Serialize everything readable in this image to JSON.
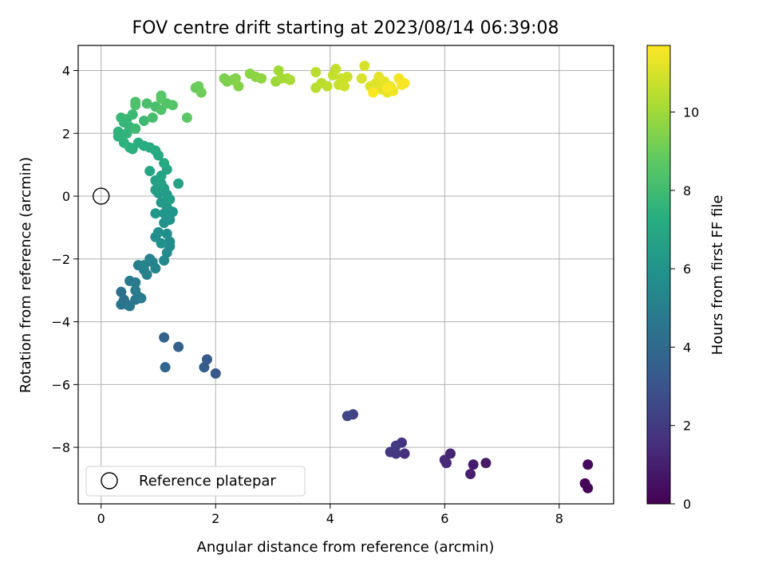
{
  "chart_data": {
    "type": "scatter",
    "title": "FOV centre drift starting at 2023/08/14 06:39:08",
    "xlabel": "Angular distance from reference (arcmin)",
    "ylabel": "Rotation from reference (arcmin)",
    "xlim": [
      -0.4,
      8.95
    ],
    "ylim": [
      -9.8,
      4.8
    ],
    "xticks": [
      0,
      2,
      4,
      6,
      8
    ],
    "yticks": [
      -8,
      -6,
      -4,
      -2,
      0,
      2,
      4
    ],
    "grid": true,
    "legend": {
      "position": "lower-left",
      "entries": [
        "Reference platepar"
      ]
    },
    "reference_point": {
      "x": 0,
      "y": 0
    },
    "colorbar": {
      "label": "Hours from first FF file",
      "min": 0,
      "max": 11.7,
      "ticks": [
        0,
        2,
        4,
        6,
        8,
        10
      ],
      "colormap": "viridis"
    },
    "points": [
      [
        8.5,
        -9.3,
        0.1
      ],
      [
        8.45,
        -9.15,
        0.2
      ],
      [
        8.5,
        -8.55,
        0.3
      ],
      [
        6.72,
        -8.5,
        0.8
      ],
      [
        6.5,
        -8.55,
        0.9
      ],
      [
        6.45,
        -8.85,
        1.0
      ],
      [
        6.1,
        -8.2,
        1.2
      ],
      [
        6.03,
        -8.5,
        1.3
      ],
      [
        6.0,
        -8.4,
        1.4
      ],
      [
        5.3,
        -8.2,
        1.6
      ],
      [
        5.25,
        -7.85,
        1.7
      ],
      [
        5.15,
        -8.2,
        1.8
      ],
      [
        5.05,
        -8.15,
        1.9
      ],
      [
        5.15,
        -7.95,
        2.0
      ],
      [
        4.4,
        -6.95,
        2.3
      ],
      [
        4.3,
        -7.0,
        2.4
      ],
      [
        2.0,
        -5.65,
        3.2
      ],
      [
        1.85,
        -5.2,
        3.3
      ],
      [
        1.8,
        -5.45,
        3.4
      ],
      [
        1.35,
        -4.8,
        3.6
      ],
      [
        1.1,
        -4.5,
        3.7
      ],
      [
        1.12,
        -5.45,
        3.8
      ],
      [
        0.35,
        -3.05,
        4.3
      ],
      [
        0.4,
        -3.3,
        4.4
      ],
      [
        0.45,
        -3.45,
        4.45
      ],
      [
        0.35,
        -3.45,
        4.5
      ],
      [
        0.6,
        -3.3,
        4.55
      ],
      [
        0.65,
        -3.2,
        4.6
      ],
      [
        0.5,
        -3.5,
        4.65
      ],
      [
        0.5,
        -2.7,
        4.7
      ],
      [
        0.6,
        -2.75,
        4.75
      ],
      [
        0.7,
        -3.25,
        4.8
      ],
      [
        0.6,
        -3.0,
        4.85
      ],
      [
        0.65,
        -2.2,
        5.0
      ],
      [
        0.75,
        -2.35,
        5.05
      ],
      [
        0.8,
        -2.5,
        5.1
      ],
      [
        0.9,
        -2.1,
        5.15
      ],
      [
        0.85,
        -2.0,
        5.2
      ],
      [
        0.75,
        -2.2,
        5.25
      ],
      [
        0.95,
        -2.3,
        5.3
      ],
      [
        1.1,
        -2.05,
        5.5
      ],
      [
        1.15,
        -1.8,
        5.55
      ],
      [
        1.2,
        -1.6,
        5.6
      ],
      [
        1.2,
        -1.45,
        5.65
      ],
      [
        1.15,
        -1.2,
        5.7
      ],
      [
        0.95,
        -1.3,
        5.75
      ],
      [
        1.0,
        -1.15,
        5.8
      ],
      [
        1.05,
        -1.5,
        5.85
      ],
      [
        1.1,
        -0.85,
        5.95
      ],
      [
        1.2,
        -0.75,
        6.0
      ],
      [
        1.25,
        -0.5,
        6.05
      ],
      [
        1.1,
        -0.55,
        6.1
      ],
      [
        0.95,
        -0.55,
        6.15
      ],
      [
        1.15,
        -0.35,
        6.2
      ],
      [
        1.05,
        -0.2,
        6.25
      ],
      [
        1.0,
        0.1,
        6.35
      ],
      [
        1.15,
        0.05,
        6.4
      ],
      [
        1.2,
        -0.1,
        6.45
      ],
      [
        1.1,
        0.25,
        6.5
      ],
      [
        0.95,
        0.2,
        6.55
      ],
      [
        1.05,
        0.4,
        6.6
      ],
      [
        0.95,
        0.5,
        6.65
      ],
      [
        1.35,
        0.4,
        6.7
      ],
      [
        1.05,
        0.65,
        6.75
      ],
      [
        1.15,
        0.85,
        6.8
      ],
      [
        0.85,
        0.8,
        6.85
      ],
      [
        1.1,
        1.05,
        7.05
      ],
      [
        1.0,
        1.3,
        7.1
      ],
      [
        0.95,
        1.45,
        7.15
      ],
      [
        0.85,
        1.55,
        7.2
      ],
      [
        0.75,
        1.6,
        7.25
      ],
      [
        0.65,
        1.7,
        7.3
      ],
      [
        0.55,
        1.5,
        7.35
      ],
      [
        0.5,
        1.55,
        7.4
      ],
      [
        0.4,
        1.7,
        7.45
      ],
      [
        0.3,
        1.9,
        7.5
      ],
      [
        0.3,
        2.05,
        7.55
      ],
      [
        0.45,
        2.0,
        7.6
      ],
      [
        0.5,
        2.2,
        7.65
      ],
      [
        0.4,
        2.35,
        7.7
      ],
      [
        0.45,
        2.45,
        7.75
      ],
      [
        0.35,
        2.5,
        7.8
      ],
      [
        0.55,
        2.6,
        7.85
      ],
      [
        0.75,
        2.4,
        7.9
      ],
      [
        0.6,
        2.15,
        7.95
      ],
      [
        0.9,
        2.5,
        8.15
      ],
      [
        0.95,
        2.85,
        8.2
      ],
      [
        0.8,
        2.95,
        8.25
      ],
      [
        0.6,
        2.9,
        8.3
      ],
      [
        0.6,
        3.0,
        8.35
      ],
      [
        1.05,
        2.75,
        8.4
      ],
      [
        1.15,
        2.95,
        8.45
      ],
      [
        1.25,
        2.9,
        8.5
      ],
      [
        1.05,
        3.1,
        8.55
      ],
      [
        1.05,
        3.2,
        8.6
      ],
      [
        1.5,
        2.5,
        8.7
      ],
      [
        1.65,
        3.45,
        8.95
      ],
      [
        1.7,
        3.5,
        9.0
      ],
      [
        1.75,
        3.3,
        9.05
      ],
      [
        2.15,
        3.75,
        9.3
      ],
      [
        2.2,
        3.65,
        9.35
      ],
      [
        2.3,
        3.7,
        9.4
      ],
      [
        2.35,
        3.75,
        9.45
      ],
      [
        2.4,
        3.5,
        9.5
      ],
      [
        2.6,
        3.9,
        9.6
      ],
      [
        2.7,
        3.8,
        9.65
      ],
      [
        2.8,
        3.75,
        9.7
      ],
      [
        3.05,
        3.65,
        9.95
      ],
      [
        3.1,
        4.0,
        10.0
      ],
      [
        3.15,
        3.75,
        10.05
      ],
      [
        3.25,
        3.75,
        10.1
      ],
      [
        3.3,
        3.7,
        10.15
      ],
      [
        3.75,
        3.45,
        10.4
      ],
      [
        3.75,
        3.95,
        10.45
      ],
      [
        3.85,
        3.6,
        10.5
      ],
      [
        3.95,
        3.5,
        10.55
      ],
      [
        4.05,
        3.85,
        10.6
      ],
      [
        4.1,
        4.05,
        10.65
      ],
      [
        4.15,
        3.55,
        10.7
      ],
      [
        4.2,
        3.75,
        10.75
      ],
      [
        4.3,
        3.8,
        10.8
      ],
      [
        4.25,
        3.5,
        10.85
      ],
      [
        4.55,
        3.75,
        11.0
      ],
      [
        4.6,
        4.15,
        11.05
      ],
      [
        4.7,
        3.5,
        11.1
      ],
      [
        4.8,
        3.6,
        11.15
      ],
      [
        4.85,
        3.8,
        11.2
      ],
      [
        4.9,
        3.4,
        11.25
      ],
      [
        4.95,
        3.65,
        11.3
      ],
      [
        5.0,
        3.3,
        11.35
      ],
      [
        5.05,
        3.5,
        11.4
      ],
      [
        5.1,
        3.35,
        11.45
      ],
      [
        5.2,
        3.75,
        11.5
      ],
      [
        5.25,
        3.55,
        11.55
      ],
      [
        5.3,
        3.6,
        11.6
      ],
      [
        5.0,
        3.45,
        11.65
      ],
      [
        4.75,
        3.3,
        11.7
      ]
    ]
  }
}
